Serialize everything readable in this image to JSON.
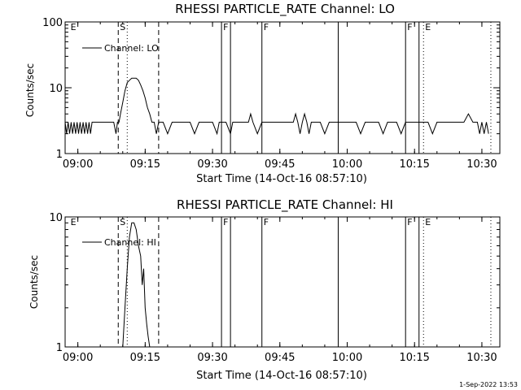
{
  "footer": {
    "date_stamp": "1-Sep-2022 13:53"
  },
  "markers": {
    "solid_times": [
      "09:32",
      "09:34",
      "09:41",
      "09:58",
      "10:13",
      "10:16"
    ],
    "dashed_times": [
      "09:09",
      "09:18"
    ],
    "dotted_times": [
      "09:11",
      "10:17",
      "10:32"
    ],
    "letter_labels": [
      {
        "text": "E",
        "time": "08:58"
      },
      {
        "text": "S",
        "time": "09:09"
      },
      {
        "text": "F",
        "time": "09:32"
      },
      {
        "text": "F",
        "time": "09:41"
      },
      {
        "text": "F",
        "time": "10:13"
      },
      {
        "text": "E",
        "time": "10:17"
      }
    ]
  },
  "chart_data": [
    {
      "type": "line",
      "title": "RHESSI PARTICLE_RATE Channel: LO",
      "xlabel": "Start Time (14-Oct-16 08:57:10)",
      "ylabel": "Counts/sec",
      "yscale": "log",
      "ylim": [
        1,
        100
      ],
      "y_ticks": [
        "1",
        "10",
        "100"
      ],
      "x_ticks": [
        "09:00",
        "09:15",
        "09:30",
        "09:45",
        "10:00",
        "10:15",
        "10:30"
      ],
      "xlim": [
        "08:57:10",
        "10:34"
      ],
      "legend": "top-left",
      "series": [
        {
          "name": "Channel: LO",
          "x": [
            "08:57:10",
            "08:57:30",
            "08:57:50",
            "08:58:10",
            "08:58:30",
            "08:58:50",
            "08:59:10",
            "08:59:30",
            "08:59:50",
            "09:00:10",
            "09:00:30",
            "09:00:50",
            "09:01:10",
            "09:01:30",
            "09:01:50",
            "09:02:10",
            "09:02:30",
            "09:02:50",
            "09:03:10",
            "09:03:30",
            "09:03:50",
            "09:04:10",
            "09:05:00",
            "09:06:00",
            "09:07:00",
            "09:08:00",
            "09:08:30",
            "09:08:50",
            "09:09:10",
            "09:09:30",
            "09:10:00",
            "09:10:30",
            "09:11:00",
            "09:11:30",
            "09:12:00",
            "09:12:30",
            "09:13:00",
            "09:13:30",
            "09:14:00",
            "09:14:30",
            "09:15:00",
            "09:15:30",
            "09:16:00",
            "09:16:30",
            "09:17:00",
            "09:17:30",
            "09:18:00",
            "09:18:30",
            "09:19:00",
            "09:20:00",
            "09:21:00",
            "09:22:00",
            "09:23:00",
            "09:24:00",
            "09:25:00",
            "09:26:00",
            "09:27:00",
            "09:28:00",
            "09:29:00",
            "09:30:00",
            "09:31:00",
            "09:31:30",
            "09:32:00",
            "09:33:00",
            "09:34:00",
            "09:34:30",
            "09:35:00",
            "09:36:00",
            "09:37:00",
            "09:38:00",
            "09:38:30",
            "09:39:00",
            "09:40:00",
            "09:41:00",
            "09:42:00",
            "09:43:00",
            "09:44:00",
            "09:45:00",
            "09:46:00",
            "09:47:00",
            "09:48:00",
            "09:48:30",
            "09:49:00",
            "09:49:30",
            "09:50:00",
            "09:50:30",
            "09:51:00",
            "09:51:30",
            "09:52:00",
            "09:53:00",
            "09:54:00",
            "09:55:00",
            "09:56:00",
            "09:57:00",
            "09:58:00",
            "09:59:00",
            "10:00:00",
            "10:01:00",
            "10:02:00",
            "10:03:00",
            "10:04:00",
            "10:05:00",
            "10:06:00",
            "10:07:00",
            "10:08:00",
            "10:09:00",
            "10:10:00",
            "10:11:00",
            "10:12:00",
            "10:13:00",
            "10:14:00",
            "10:14:30",
            "10:15:00",
            "10:16:00",
            "10:17:00",
            "10:18:00",
            "10:19:00",
            "10:20:00",
            "10:21:00",
            "10:22:00",
            "10:23:00",
            "10:24:00",
            "10:25:00",
            "10:26:00",
            "10:27:00",
            "10:28:00",
            "10:29:00",
            "10:29:30",
            "10:30:00",
            "10:30:30",
            "10:31:00",
            "10:31:30"
          ],
          "y": [
            3,
            2,
            3,
            2,
            3,
            2,
            3,
            2,
            3,
            2,
            3,
            2,
            3,
            2,
            3,
            2,
            3,
            2,
            3,
            3,
            3,
            3,
            3,
            3,
            3,
            3,
            2,
            3,
            3,
            4,
            6,
            9,
            12,
            13,
            14,
            14,
            14,
            13,
            11,
            9,
            7,
            5,
            4,
            3,
            3,
            2,
            3,
            3,
            3,
            2,
            3,
            3,
            3,
            3,
            3,
            2,
            3,
            3,
            3,
            3,
            2,
            3,
            3,
            3,
            2,
            3,
            3,
            3,
            3,
            3,
            4,
            3,
            2,
            3,
            3,
            3,
            3,
            3,
            3,
            3,
            3,
            4,
            3,
            2,
            3,
            4,
            3,
            2,
            3,
            3,
            3,
            2,
            3,
            3,
            3,
            3,
            3,
            3,
            3,
            2,
            3,
            3,
            3,
            3,
            2,
            3,
            3,
            3,
            2,
            3,
            3,
            3,
            3,
            3,
            3,
            3,
            2,
            3,
            3,
            3,
            3,
            3,
            3,
            3,
            4,
            3,
            3,
            2,
            3,
            2,
            3,
            2
          ]
        }
      ]
    },
    {
      "type": "line",
      "title": "RHESSI PARTICLE_RATE Channel: HI",
      "xlabel": "Start Time (14-Oct-16 08:57:10)",
      "ylabel": "Counts/sec",
      "yscale": "log",
      "ylim": [
        1,
        10
      ],
      "y_ticks": [
        "1",
        "10"
      ],
      "x_ticks": [
        "09:00",
        "09:15",
        "09:30",
        "09:45",
        "10:00",
        "10:15",
        "10:30"
      ],
      "xlim": [
        "08:57:10",
        "10:34"
      ],
      "legend": "top-left",
      "series": [
        {
          "name": "Channel: HI",
          "x": [
            "09:10:00",
            "09:10:30",
            "09:11:00",
            "09:11:30",
            "09:12:00",
            "09:12:30",
            "09:13:00",
            "09:13:30",
            "09:14:00",
            "09:14:20",
            "09:14:40",
            "09:15:00",
            "09:15:20",
            "09:15:40",
            "09:16:00"
          ],
          "y": [
            1,
            2,
            4,
            7,
            9,
            9,
            8,
            6,
            5,
            3,
            4,
            2,
            1.5,
            1.2,
            1
          ]
        }
      ]
    }
  ]
}
